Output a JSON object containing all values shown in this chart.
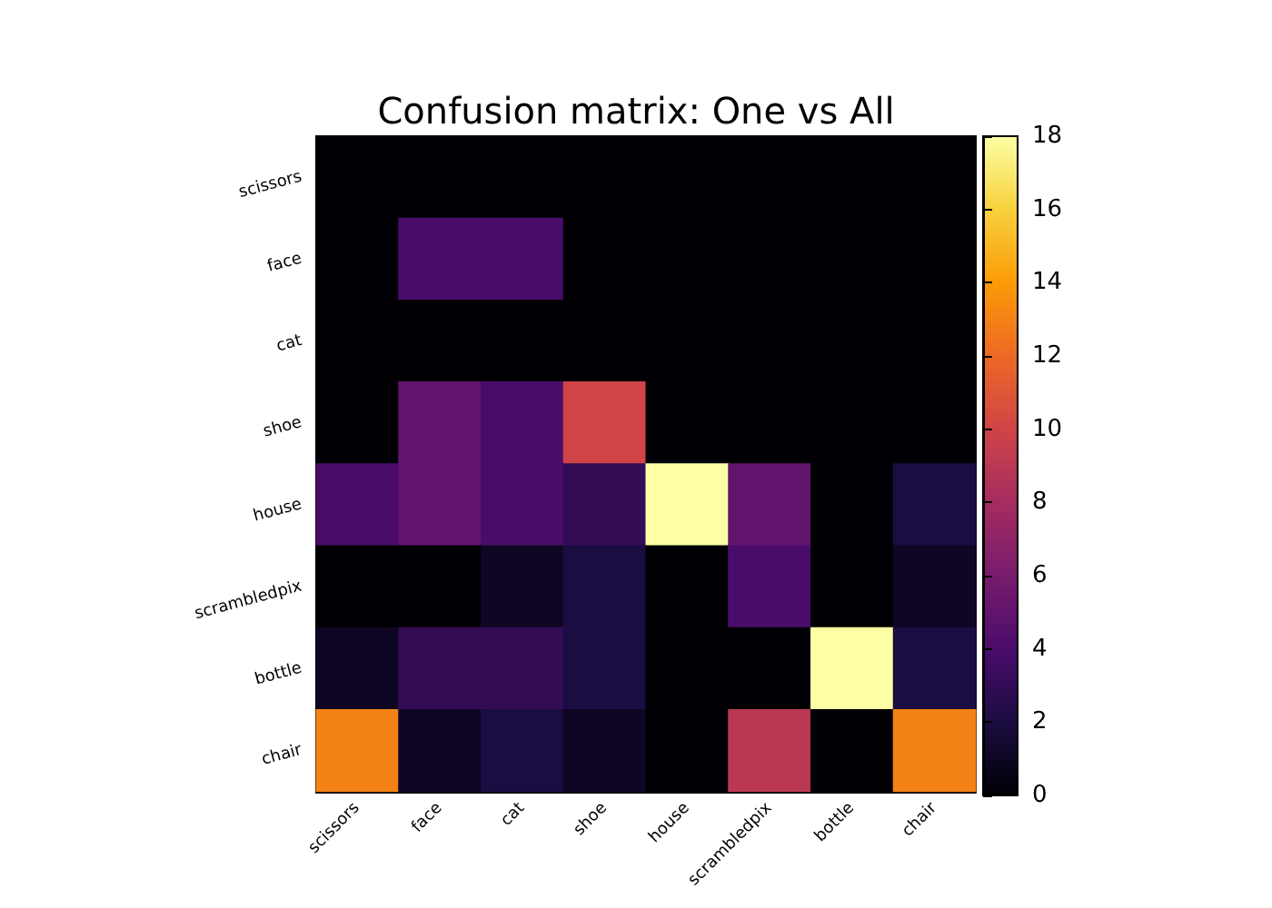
{
  "chart_data": {
    "type": "heatmap",
    "title": "Confusion matrix: One vs All",
    "categories": [
      "scissors",
      "face",
      "cat",
      "shoe",
      "house",
      "scrambledpix",
      "bottle",
      "chair"
    ],
    "y_categories": [
      "scissors",
      "face",
      "cat",
      "shoe",
      "house",
      "scrambledpix",
      "bottle",
      "chair"
    ],
    "cells": [
      [
        0,
        0,
        0,
        0,
        0,
        0,
        0,
        0
      ],
      [
        0,
        4,
        4,
        0,
        0,
        0,
        0,
        0
      ],
      [
        0,
        0,
        0,
        0,
        0,
        0,
        0,
        0
      ],
      [
        0,
        5,
        4,
        10,
        0,
        0,
        0,
        0
      ],
      [
        4,
        5,
        4,
        3,
        18,
        5,
        0,
        2
      ],
      [
        0,
        0,
        1,
        2,
        0,
        4,
        0,
        1
      ],
      [
        1,
        3,
        3,
        2,
        0,
        0,
        18,
        2
      ],
      [
        13,
        1,
        2,
        1,
        0,
        9,
        0,
        13
      ]
    ],
    "clim": [
      0,
      18
    ],
    "cticks": [
      0,
      2,
      4,
      6,
      8,
      10,
      12,
      14,
      16,
      18
    ]
  }
}
